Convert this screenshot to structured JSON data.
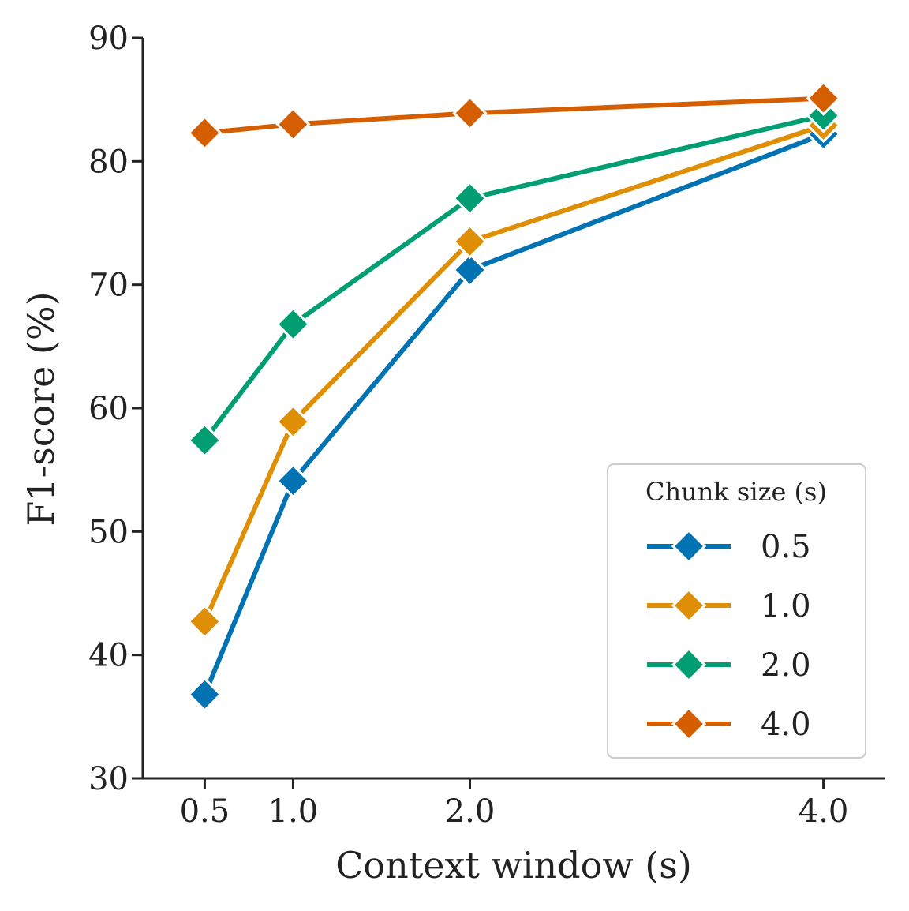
{
  "chart_data": {
    "type": "line",
    "xlabel": "Context window (s)",
    "ylabel": "F1-score (%)",
    "x": [
      0.5,
      1.0,
      2.0,
      4.0
    ],
    "x_tick_labels": [
      "0.5",
      "1.0",
      "2.0",
      "4.0"
    ],
    "xlim": [
      0.15,
      4.35
    ],
    "ylim": [
      30,
      90
    ],
    "y_ticks": [
      30,
      40,
      50,
      60,
      70,
      80,
      90
    ],
    "y_tick_labels": [
      "30",
      "40",
      "50",
      "60",
      "70",
      "80",
      "90"
    ],
    "grid": false,
    "legend": {
      "title": "Chunk size (s)",
      "placement": "lower-right"
    },
    "series": [
      {
        "name": "0.5",
        "color": "#0173b2",
        "values": [
          36.8,
          54.1,
          71.2,
          82.2
        ]
      },
      {
        "name": "1.0",
        "color": "#de8f05",
        "values": [
          42.7,
          58.9,
          73.5,
          82.9
        ]
      },
      {
        "name": "2.0",
        "color": "#029e73",
        "values": [
          57.4,
          66.8,
          77.0,
          83.7
        ]
      },
      {
        "name": "4.0",
        "color": "#d55e00",
        "values": [
          82.3,
          83.0,
          83.9,
          85.1
        ]
      }
    ]
  }
}
